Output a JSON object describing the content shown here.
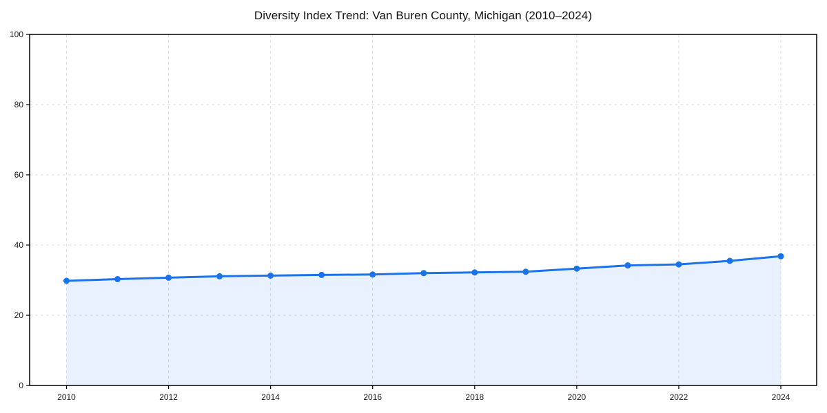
{
  "title": "Diversity Index Trend: Van Buren County, Michigan (2010–2024)",
  "chart_data": {
    "type": "line",
    "title": "Diversity Index Trend: Van Buren County, Michigan (2010–2024)",
    "x": [
      2010,
      2011,
      2012,
      2013,
      2014,
      2015,
      2016,
      2017,
      2018,
      2019,
      2020,
      2021,
      2022,
      2023,
      2024
    ],
    "series": [
      {
        "name": "Diversity Index",
        "values": [
          29.8,
          30.3,
          30.7,
          31.1,
          31.3,
          31.5,
          31.6,
          32.0,
          32.2,
          32.4,
          33.3,
          34.2,
          34.5,
          35.5,
          36.8
        ]
      }
    ],
    "xlabel": "",
    "ylabel": "",
    "ylim": [
      0,
      100
    ],
    "yticks": [
      0,
      20,
      40,
      60,
      80,
      100
    ],
    "xtick_labels": [
      "2010",
      "2012",
      "2014",
      "2016",
      "2018",
      "2020",
      "2022",
      "2024"
    ],
    "xtick_years": [
      2010,
      2012,
      2014,
      2016,
      2018,
      2020,
      2022,
      2024
    ],
    "grid": "dashed",
    "legend": "none",
    "area_fill": true,
    "markers": true,
    "colors": {
      "line": "#1a73e8",
      "marker": "#1a73e8",
      "area_fill": "rgba(26,115,232,0.10)",
      "grid": "#dcdcdc",
      "axis": "#000000",
      "tick_text": "#1a1a1a",
      "title_text": "#111111",
      "background": "#ffffff"
    }
  }
}
